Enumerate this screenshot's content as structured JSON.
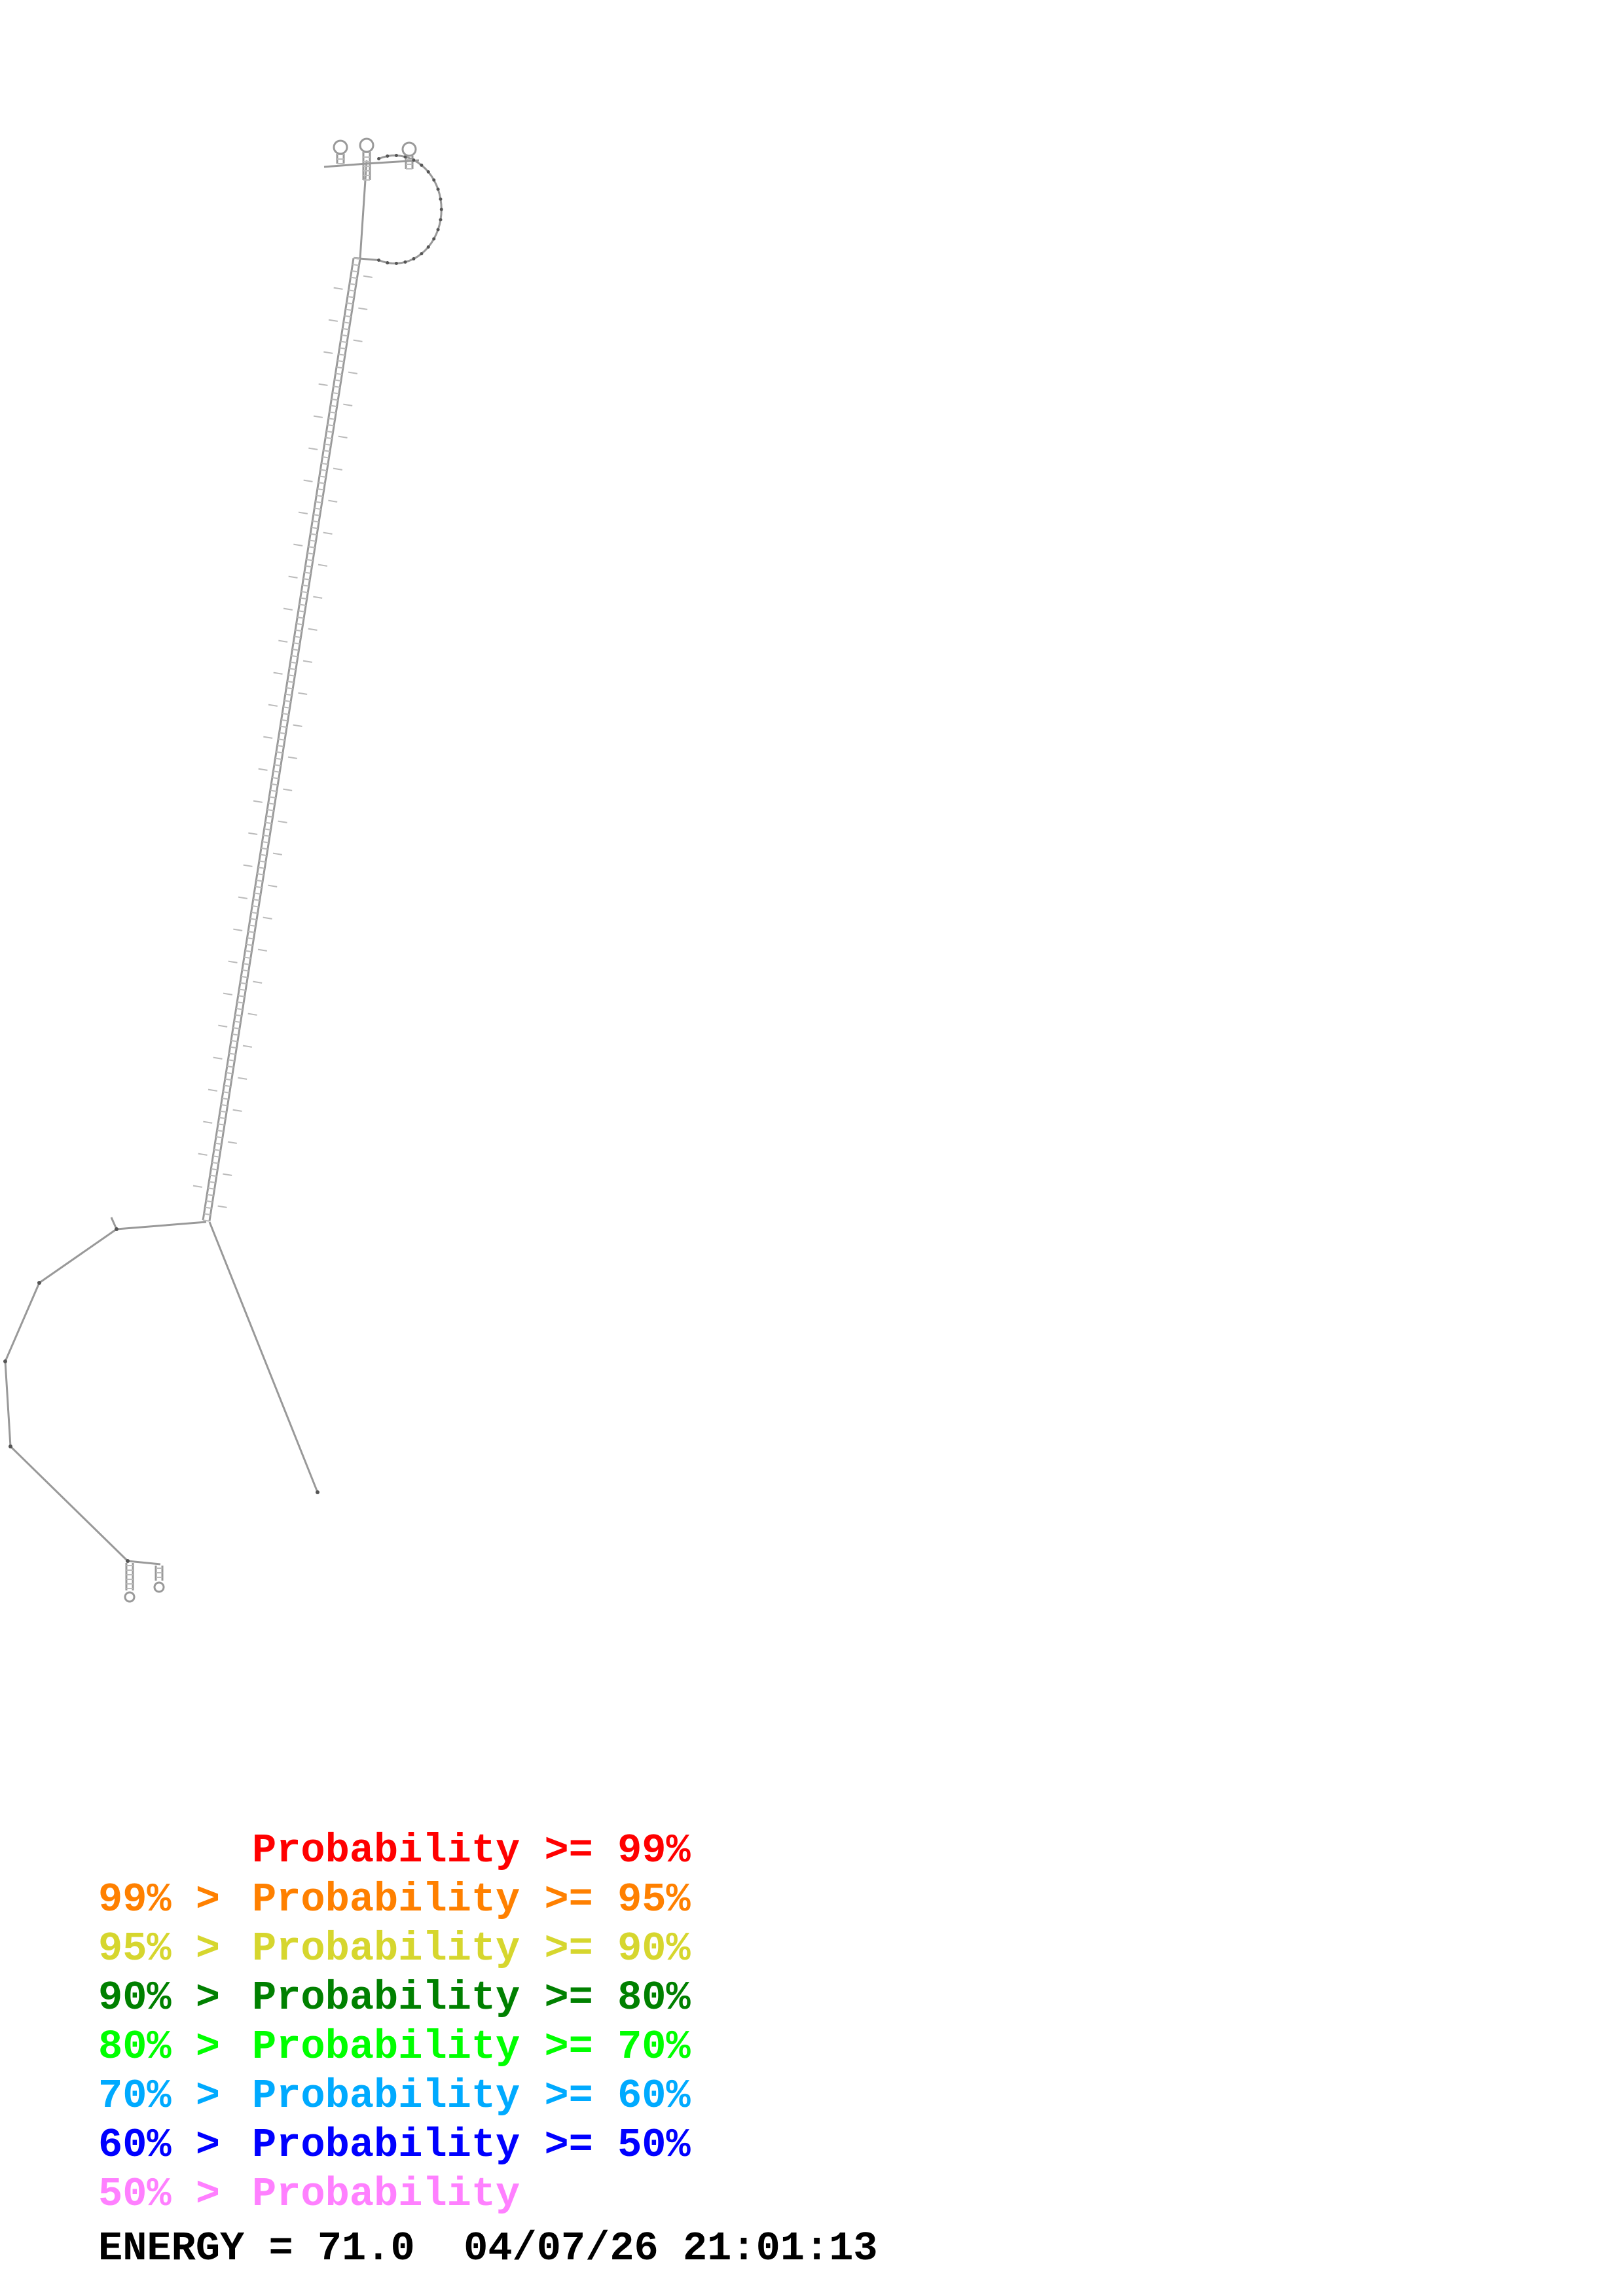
{
  "colors": {
    "backbone": "#999999",
    "bond": "#bbbbbb",
    "base": "#555555"
  },
  "legend": [
    {
      "lower": "",
      "text": "Probability >= 99%",
      "color": "#ff0000"
    },
    {
      "lower": "99% >",
      "text": "Probability >= 95%",
      "color": "#ff8000"
    },
    {
      "lower": "95% >",
      "text": "Probability >= 90%",
      "color": "#d6d62e"
    },
    {
      "lower": "90% >",
      "text": "Probability >= 80%",
      "color": "#008000"
    },
    {
      "lower": "80% >",
      "text": "Probability >= 70%",
      "color": "#00ff00"
    },
    {
      "lower": "70% >",
      "text": "Probability >= 60%",
      "color": "#00aaff"
    },
    {
      "lower": "60% >",
      "text": "Probability >= 50%",
      "color": "#0000ff"
    },
    {
      "lower": "50% >",
      "text": "Probability",
      "color": "#ff80ff"
    }
  ],
  "footer": {
    "energy_label": "ENERGY = 71.0",
    "datetime": "04/07/26 21:01:13"
  }
}
